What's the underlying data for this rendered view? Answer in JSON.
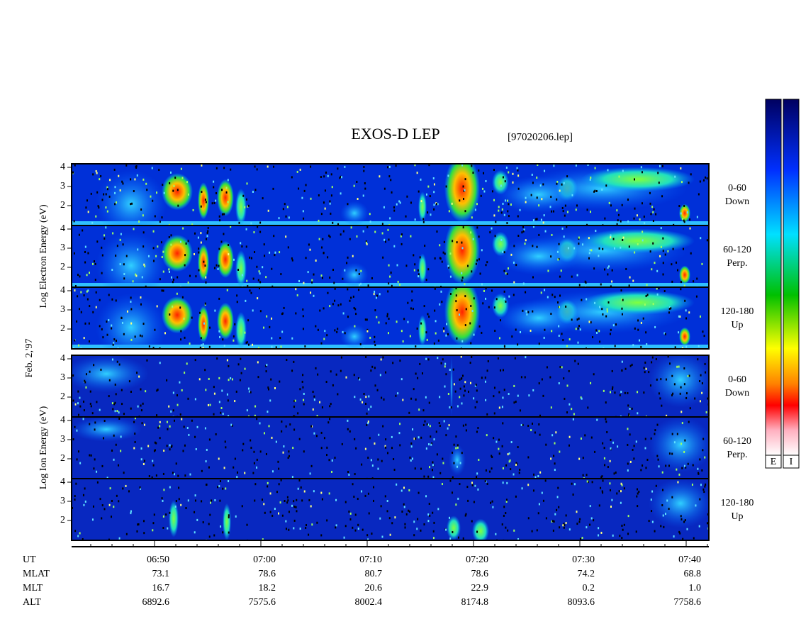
{
  "title": "EXOS-D LEP",
  "file": "[97020206.lep]",
  "date": "Feb. 2,'97",
  "yticks": [
    2,
    3,
    4
  ],
  "groups": [
    {
      "ylabel": "Log Electron Energy (eV)",
      "panels": [
        {
          "angle": "0-60",
          "direction": "Down"
        },
        {
          "angle": "60-120",
          "direction": "Perp."
        },
        {
          "angle": "120-180",
          "direction": "Up"
        }
      ]
    },
    {
      "ylabel": "Log Ion Energy (eV)",
      "panels": [
        {
          "angle": "0-60",
          "direction": "Down"
        },
        {
          "angle": "60-120",
          "direction": "Perp."
        },
        {
          "angle": "120-180",
          "direction": "Up"
        }
      ]
    }
  ],
  "axis": {
    "rows": [
      {
        "name": "UT",
        "values": [
          "06:50",
          "07:00",
          "07:10",
          "07:20",
          "07:30",
          "07:40"
        ]
      },
      {
        "name": "MLAT",
        "values": [
          "73.1",
          "78.6",
          "80.7",
          "78.6",
          "74.2",
          "68.8"
        ]
      },
      {
        "name": "MLT",
        "values": [
          "16.7",
          "18.2",
          "20.6",
          "22.9",
          "0.2",
          "1.0"
        ]
      },
      {
        "name": "ALT",
        "values": [
          "6892.6",
          "7575.6",
          "8002.4",
          "8174.8",
          "8093.6",
          "7758.6"
        ]
      }
    ]
  },
  "colorbar_labels": [
    "E",
    "I"
  ]
}
